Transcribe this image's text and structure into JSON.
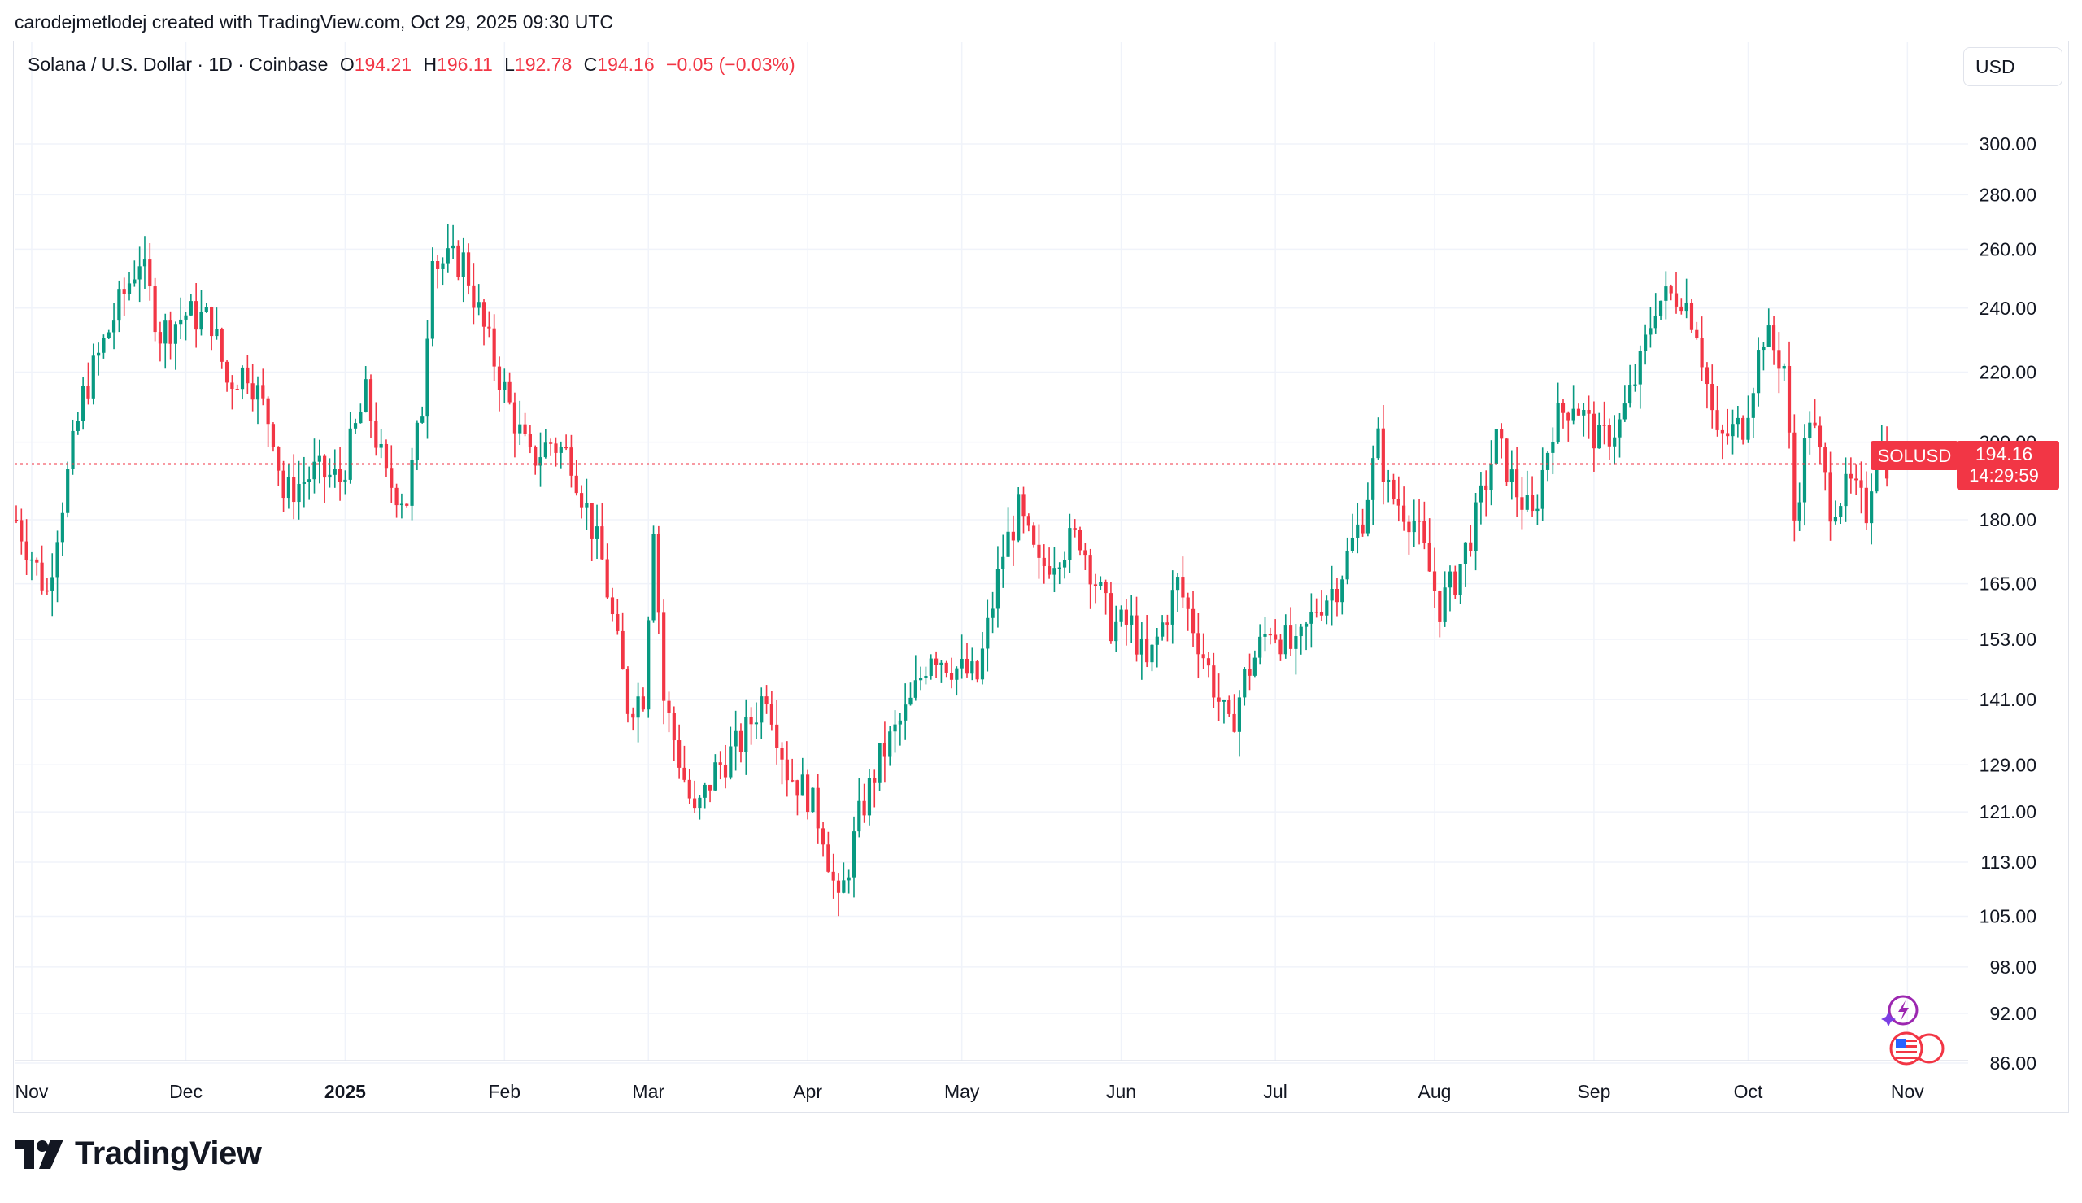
{
  "credit": "carodejmetlodej created with TradingView.com, Oct 29, 2025 09:30 UTC",
  "legend": {
    "symbol": "Solana / U.S. Dollar · 1D · Coinbase",
    "o_label": "O",
    "o_value": "194.21",
    "h_label": "H",
    "h_value": "196.11",
    "l_label": "L",
    "l_value": "192.78",
    "c_label": "C",
    "c_value": "194.16",
    "change": "−0.05 (−0.03%)"
  },
  "currency_button": "USD",
  "price_tag": {
    "symbol": "SOLUSD",
    "price": "194.16",
    "countdown": "14:29:59"
  },
  "brand": "TradingView",
  "colors": {
    "up": "#089981",
    "down": "#f23645",
    "grid": "#f0f3fa",
    "text": "#131722",
    "accent_icon": "#9c27b0"
  },
  "chart_data": {
    "type": "candlestick",
    "title": "Solana / U.S. Dollar · 1D · Coinbase",
    "y_scale": "log",
    "ylim": [
      86,
      305
    ],
    "y_ticks": [
      300,
      280,
      260,
      240,
      220,
      200,
      180,
      165,
      153,
      141,
      129,
      121,
      113,
      105,
      98,
      92,
      86
    ],
    "y_tick_labels": [
      "300.00",
      "280.00",
      "260.00",
      "240.00",
      "220.00",
      "200.00",
      "180.00",
      "165.00",
      "153.00",
      "141.00",
      "129.00",
      "121.00",
      "113.00",
      "105.00",
      "98.00",
      "92.00",
      "86.00"
    ],
    "x_range": [
      "2024-10-29",
      "2025-11-03"
    ],
    "x_ticks": [
      {
        "date": "2024-11-01",
        "label": "Nov"
      },
      {
        "date": "2024-12-01",
        "label": "Dec"
      },
      {
        "date": "2025-01-01",
        "label": "2025"
      },
      {
        "date": "2025-02-01",
        "label": "Feb"
      },
      {
        "date": "2025-03-01",
        "label": "Mar"
      },
      {
        "date": "2025-04-01",
        "label": "Apr"
      },
      {
        "date": "2025-05-01",
        "label": "May"
      },
      {
        "date": "2025-06-01",
        "label": "Jun"
      },
      {
        "date": "2025-07-01",
        "label": "Jul"
      },
      {
        "date": "2025-08-01",
        "label": "Aug"
      },
      {
        "date": "2025-09-01",
        "label": "Sep"
      },
      {
        "date": "2025-10-01",
        "label": "Oct"
      },
      {
        "date": "2025-11-01",
        "label": "Nov"
      }
    ],
    "last_price": 194.16,
    "grid": true,
    "series": [
      {
        "date": "2024-10-29",
        "close": 180
      },
      {
        "date": "2024-11-04",
        "close": 163
      },
      {
        "date": "2024-11-06",
        "close": 178
      },
      {
        "date": "2024-11-11",
        "close": 213
      },
      {
        "date": "2024-11-17",
        "close": 237
      },
      {
        "date": "2024-11-22",
        "close": 257
      },
      {
        "date": "2024-11-26",
        "close": 232
      },
      {
        "date": "2024-12-01",
        "close": 238
      },
      {
        "date": "2024-12-06",
        "close": 236
      },
      {
        "date": "2024-12-09",
        "close": 217
      },
      {
        "date": "2024-12-13",
        "close": 221
      },
      {
        "date": "2024-12-18",
        "close": 203
      },
      {
        "date": "2024-12-20",
        "close": 186
      },
      {
        "date": "2024-12-26",
        "close": 192
      },
      {
        "date": "2024-12-31",
        "close": 190
      },
      {
        "date": "2025-01-05",
        "close": 213
      },
      {
        "date": "2025-01-09",
        "close": 190
      },
      {
        "date": "2025-01-13",
        "close": 185
      },
      {
        "date": "2025-01-16",
        "close": 210
      },
      {
        "date": "2025-01-18",
        "close": 262
      },
      {
        "date": "2025-01-19",
        "close": 255
      },
      {
        "date": "2025-01-24",
        "close": 256
      },
      {
        "date": "2025-01-28",
        "close": 233
      },
      {
        "date": "2025-02-02",
        "close": 210
      },
      {
        "date": "2025-02-06",
        "close": 195
      },
      {
        "date": "2025-02-10",
        "close": 200
      },
      {
        "date": "2025-02-14",
        "close": 196
      },
      {
        "date": "2025-02-20",
        "close": 170
      },
      {
        "date": "2025-02-25",
        "close": 140
      },
      {
        "date": "2025-02-28",
        "close": 142
      },
      {
        "date": "2025-03-02",
        "close": 180
      },
      {
        "date": "2025-03-04",
        "close": 141
      },
      {
        "date": "2025-03-10",
        "close": 120
      },
      {
        "date": "2025-03-14",
        "close": 128
      },
      {
        "date": "2025-03-19",
        "close": 133
      },
      {
        "date": "2025-03-24",
        "close": 143
      },
      {
        "date": "2025-03-28",
        "close": 128
      },
      {
        "date": "2025-04-01",
        "close": 124
      },
      {
        "date": "2025-04-04",
        "close": 118
      },
      {
        "date": "2025-04-07",
        "close": 106
      },
      {
        "date": "2025-04-11",
        "close": 120
      },
      {
        "date": "2025-04-15",
        "close": 130
      },
      {
        "date": "2025-04-21",
        "close": 140
      },
      {
        "date": "2025-04-25",
        "close": 151
      },
      {
        "date": "2025-04-30",
        "close": 147
      },
      {
        "date": "2025-05-04",
        "close": 145
      },
      {
        "date": "2025-05-09",
        "close": 172
      },
      {
        "date": "2025-05-12",
        "close": 182
      },
      {
        "date": "2025-05-16",
        "close": 168
      },
      {
        "date": "2025-05-20",
        "close": 173
      },
      {
        "date": "2025-05-24",
        "close": 176
      },
      {
        "date": "2025-05-30",
        "close": 156
      },
      {
        "date": "2025-06-03",
        "close": 156
      },
      {
        "date": "2025-06-06",
        "close": 147
      },
      {
        "date": "2025-06-09",
        "close": 156
      },
      {
        "date": "2025-06-12",
        "close": 165
      },
      {
        "date": "2025-06-16",
        "close": 153
      },
      {
        "date": "2025-06-22",
        "close": 135
      },
      {
        "date": "2025-06-25",
        "close": 145
      },
      {
        "date": "2025-06-30",
        "close": 156
      },
      {
        "date": "2025-07-05",
        "close": 150
      },
      {
        "date": "2025-07-09",
        "close": 160
      },
      {
        "date": "2025-07-13",
        "close": 165
      },
      {
        "date": "2025-07-18",
        "close": 181
      },
      {
        "date": "2025-07-21",
        "close": 200
      },
      {
        "date": "2025-07-23",
        "close": 187
      },
      {
        "date": "2025-07-28",
        "close": 180
      },
      {
        "date": "2025-08-02",
        "close": 160
      },
      {
        "date": "2025-08-05",
        "close": 166
      },
      {
        "date": "2025-08-09",
        "close": 180
      },
      {
        "date": "2025-08-13",
        "close": 200
      },
      {
        "date": "2025-08-17",
        "close": 187
      },
      {
        "date": "2025-08-20",
        "close": 180
      },
      {
        "date": "2025-08-24",
        "close": 205
      },
      {
        "date": "2025-08-28",
        "close": 212
      },
      {
        "date": "2025-09-02",
        "close": 200
      },
      {
        "date": "2025-09-06",
        "close": 205
      },
      {
        "date": "2025-09-10",
        "close": 222
      },
      {
        "date": "2025-09-13",
        "close": 242
      },
      {
        "date": "2025-09-18",
        "close": 245
      },
      {
        "date": "2025-09-21",
        "close": 234
      },
      {
        "date": "2025-09-25",
        "close": 200
      },
      {
        "date": "2025-09-30",
        "close": 205
      },
      {
        "date": "2025-10-04",
        "close": 232
      },
      {
        "date": "2025-10-08",
        "close": 222
      },
      {
        "date": "2025-10-10",
        "close": 180
      },
      {
        "date": "2025-10-13",
        "close": 208
      },
      {
        "date": "2025-10-17",
        "close": 184
      },
      {
        "date": "2025-10-21",
        "close": 188
      },
      {
        "date": "2025-10-24",
        "close": 182
      },
      {
        "date": "2025-10-26",
        "close": 200
      },
      {
        "date": "2025-10-28",
        "close": 195
      },
      {
        "date": "2025-10-29",
        "close": 194.16
      }
    ]
  }
}
